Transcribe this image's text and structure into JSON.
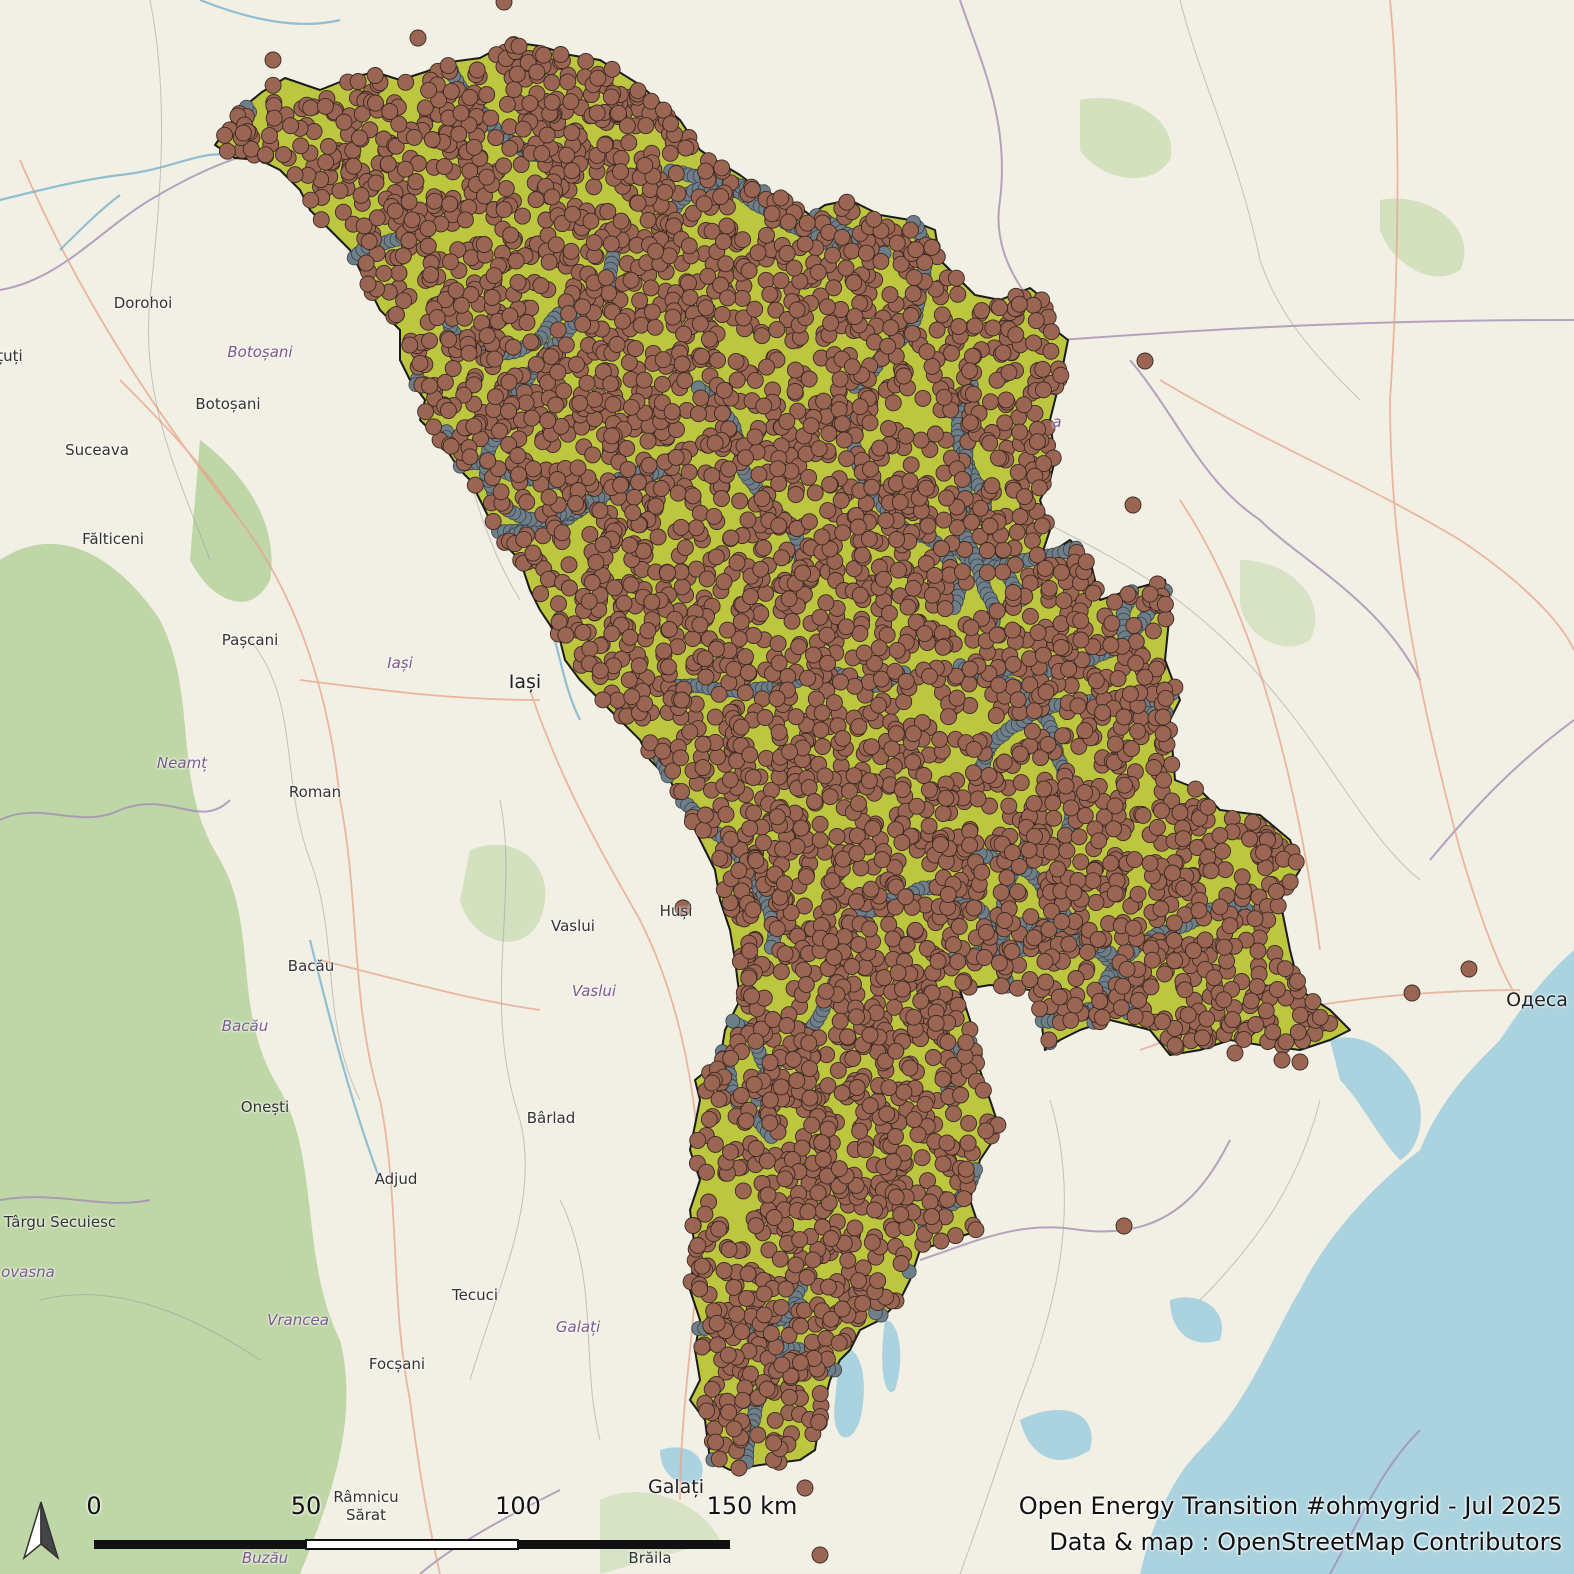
{
  "map": {
    "colors": {
      "background": "#f2efe4",
      "sea": "#aad3df",
      "forest": "#b5d29f",
      "country_fill": "#bcc63e",
      "country_outline": "#1a1a1a",
      "substation": "#9a6552",
      "tower": "#6e7f8a",
      "border": "#a38fb5",
      "road": "#e8a28a"
    },
    "places": [
      {
        "name": "Dorohoi",
        "kind": "city"
      },
      {
        "name": "Botoșani",
        "kind": "region"
      },
      {
        "name": "Botoșani",
        "kind": "city"
      },
      {
        "name": "Suceava",
        "kind": "city"
      },
      {
        "name": "Fălticeni",
        "kind": "city"
      },
      {
        "name": "Pașcani",
        "kind": "city"
      },
      {
        "name": "Iași",
        "kind": "region"
      },
      {
        "name": "Iași",
        "kind": "bigcity"
      },
      {
        "name": "Neamț",
        "kind": "region"
      },
      {
        "name": "Roman",
        "kind": "city"
      },
      {
        "name": "Vaslui",
        "kind": "city"
      },
      {
        "name": "Vaslui",
        "kind": "region"
      },
      {
        "name": "Huși",
        "kind": "city"
      },
      {
        "name": "Bacău",
        "kind": "city"
      },
      {
        "name": "Bacău",
        "kind": "region"
      },
      {
        "name": "Onești",
        "kind": "city"
      },
      {
        "name": "Bârlad",
        "kind": "city"
      },
      {
        "name": "Adjud",
        "kind": "city"
      },
      {
        "name": "Târgu Secuiesc",
        "kind": "city"
      },
      {
        "name": "ovasna",
        "kind": "region"
      },
      {
        "name": "Tecuci",
        "kind": "city"
      },
      {
        "name": "Vrancea",
        "kind": "region"
      },
      {
        "name": "Galați",
        "kind": "region"
      },
      {
        "name": "Focșani",
        "kind": "city"
      },
      {
        "name": "Galați",
        "kind": "bigcity"
      },
      {
        "name": "Râmnicu Sărat",
        "kind": "city"
      },
      {
        "name": "Buzău",
        "kind": "region"
      },
      {
        "name": "Brăila",
        "kind": "city"
      },
      {
        "name": "Одеса",
        "kind": "bigcity"
      },
      {
        "name": "țuți",
        "kind": "city"
      },
      {
        "name": "a",
        "kind": "region"
      }
    ],
    "scale_bar": {
      "labels": [
        "0",
        "50",
        "100",
        "150 km"
      ]
    },
    "credits": {
      "line1": "Open Energy Transition #ohmygrid - Jul 2025",
      "line2": "Data & map : OpenStreetMap Contributors"
    }
  }
}
